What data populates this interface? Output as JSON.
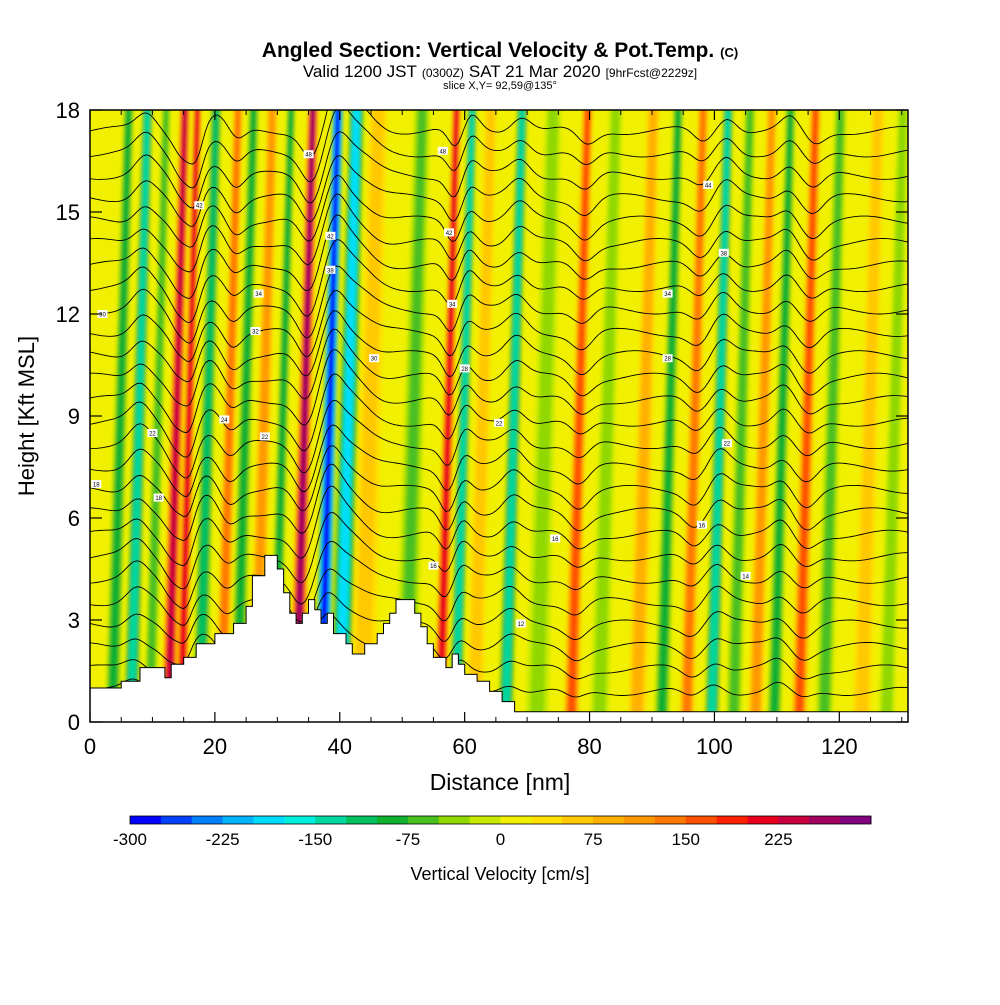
{
  "header": {
    "title_main": "Angled Section: Vertical Velocity & Pot.Temp.",
    "title_unit": "(C)",
    "valid_prefix": "Valid 1200 JST",
    "valid_z": "(0300Z)",
    "valid_date": "SAT 21 Mar 2020",
    "valid_fcst": "[9hrFcst@2229z]",
    "slice": "slice X,Y= 92,59@135°"
  },
  "chart_data": {
    "type": "heatmap",
    "title": "Angled Section: Vertical Velocity & Pot.Temp. (C)",
    "xlabel": "Distance [nm]",
    "ylabel": "Height [Kft MSL]",
    "xlim": [
      0,
      131
    ],
    "ylim": [
      0,
      18
    ],
    "x_ticks": [
      "0",
      "20",
      "40",
      "60",
      "80",
      "100",
      "120"
    ],
    "y_ticks": [
      "0",
      "3",
      "6",
      "9",
      "12",
      "15",
      "18"
    ],
    "colorbar": {
      "label": "Vertical Velocity [cm/s]",
      "min": -300,
      "max": 250,
      "step": 25,
      "tick_labels": [
        "-300",
        "-225",
        "-150",
        "-75",
        "0",
        "75",
        "150",
        "225"
      ],
      "colors": [
        "#0000ff",
        "#0040ff",
        "#0080ff",
        "#00b4ff",
        "#00dcff",
        "#00f0e0",
        "#00d8a0",
        "#00c060",
        "#10b030",
        "#48c020",
        "#90d800",
        "#c8ea00",
        "#f0f000",
        "#ffe000",
        "#ffc800",
        "#ffb000",
        "#ff9800",
        "#ff7800",
        "#ff5000",
        "#ff2000",
        "#e8001c",
        "#c80040",
        "#a00060",
        "#800080"
      ]
    },
    "velocity_columns": [
      {
        "x": 4,
        "w": 1.5,
        "v": -90
      },
      {
        "x": 7,
        "w": 1.6,
        "v": -150
      },
      {
        "x": 10,
        "w": 1.1,
        "v": -60
      },
      {
        "x": 13,
        "w": 1.5,
        "v": 210
      },
      {
        "x": 15,
        "w": 1.0,
        "v": 180
      },
      {
        "x": 18,
        "w": 1.6,
        "v": -120
      },
      {
        "x": 21.5,
        "w": 1.3,
        "v": 110
      },
      {
        "x": 24,
        "w": 1.5,
        "v": -90
      },
      {
        "x": 27,
        "w": 1.6,
        "v": 90
      },
      {
        "x": 30,
        "w": 1.1,
        "v": -80
      },
      {
        "x": 33.5,
        "w": 1.6,
        "v": 240
      },
      {
        "x": 37.5,
        "w": 1.7,
        "v": -300
      },
      {
        "x": 40.5,
        "w": 2.6,
        "v": -200
      },
      {
        "x": 44,
        "w": 3.0,
        "v": 50
      },
      {
        "x": 51,
        "w": 2.6,
        "v": -70
      },
      {
        "x": 56.5,
        "w": 1.2,
        "v": 190
      },
      {
        "x": 59,
        "w": 1.3,
        "v": -130
      },
      {
        "x": 62,
        "w": 1.8,
        "v": 40
      },
      {
        "x": 67,
        "w": 1.6,
        "v": -140
      },
      {
        "x": 72,
        "w": 2.6,
        "v": -50
      },
      {
        "x": 77.5,
        "w": 1.6,
        "v": 140
      },
      {
        "x": 82,
        "w": 2.0,
        "v": -50
      },
      {
        "x": 88,
        "w": 2.0,
        "v": 70
      },
      {
        "x": 92,
        "w": 1.5,
        "v": -90
      },
      {
        "x": 96,
        "w": 1.5,
        "v": 110
      },
      {
        "x": 100,
        "w": 1.5,
        "v": -130
      },
      {
        "x": 103.5,
        "w": 1.6,
        "v": -70
      },
      {
        "x": 107,
        "w": 1.5,
        "v": 80
      },
      {
        "x": 110,
        "w": 1.4,
        "v": -100
      },
      {
        "x": 114,
        "w": 1.6,
        "v": 130
      },
      {
        "x": 118,
        "w": 1.8,
        "v": -60
      },
      {
        "x": 124,
        "w": 2.0,
        "v": 30
      },
      {
        "x": 128,
        "w": 1.6,
        "v": -40
      }
    ],
    "terrain": [
      [
        0,
        1.0
      ],
      [
        5,
        1.0
      ],
      [
        5,
        1.2
      ],
      [
        8,
        1.2
      ],
      [
        8,
        1.6
      ],
      [
        12,
        1.6
      ],
      [
        12,
        1.3
      ],
      [
        13,
        1.3
      ],
      [
        13,
        1.7
      ],
      [
        15,
        1.7
      ],
      [
        15,
        1.9
      ],
      [
        17,
        1.9
      ],
      [
        17,
        2.3
      ],
      [
        20,
        2.3
      ],
      [
        20,
        2.6
      ],
      [
        23,
        2.6
      ],
      [
        23,
        2.9
      ],
      [
        25,
        2.9
      ],
      [
        25,
        3.4
      ],
      [
        26,
        3.4
      ],
      [
        26,
        4.3
      ],
      [
        28,
        4.3
      ],
      [
        28,
        4.9
      ],
      [
        30,
        4.9
      ],
      [
        30,
        4.5
      ],
      [
        31,
        4.5
      ],
      [
        31,
        3.8
      ],
      [
        32,
        3.8
      ],
      [
        32,
        3.2
      ],
      [
        33,
        3.2
      ],
      [
        33,
        2.9
      ],
      [
        34,
        2.9
      ],
      [
        34,
        3.2
      ],
      [
        35,
        3.2
      ],
      [
        35,
        3.6
      ],
      [
        36,
        3.6
      ],
      [
        36,
        3.3
      ],
      [
        37,
        3.3
      ],
      [
        37,
        2.9
      ],
      [
        38,
        2.9
      ],
      [
        38,
        3.2
      ],
      [
        39,
        3.2
      ],
      [
        39,
        2.6
      ],
      [
        41,
        2.6
      ],
      [
        41,
        2.3
      ],
      [
        42,
        2.3
      ],
      [
        42,
        2.0
      ],
      [
        44,
        2.0
      ],
      [
        44,
        2.3
      ],
      [
        46,
        2.3
      ],
      [
        46,
        2.6
      ],
      [
        47,
        2.6
      ],
      [
        47,
        2.9
      ],
      [
        48,
        2.9
      ],
      [
        48,
        3.2
      ],
      [
        49,
        3.2
      ],
      [
        49,
        3.6
      ],
      [
        52,
        3.6
      ],
      [
        52,
        3.2
      ],
      [
        53,
        3.2
      ],
      [
        53,
        2.8
      ],
      [
        54,
        2.8
      ],
      [
        54,
        2.3
      ],
      [
        55,
        2.3
      ],
      [
        55,
        1.9
      ],
      [
        57,
        1.9
      ],
      [
        57,
        1.6
      ],
      [
        58,
        1.6
      ],
      [
        58,
        2.0
      ],
      [
        59,
        2.0
      ],
      [
        59,
        1.7
      ],
      [
        60,
        1.7
      ],
      [
        60,
        1.4
      ],
      [
        62,
        1.4
      ],
      [
        62,
        1.2
      ],
      [
        64,
        1.2
      ],
      [
        64,
        0.9
      ],
      [
        66,
        0.9
      ],
      [
        66,
        0.6
      ],
      [
        68,
        0.6
      ],
      [
        68,
        0.3
      ],
      [
        72,
        0.3
      ],
      [
        72,
        0.3
      ],
      [
        131,
        0.3
      ]
    ],
    "theta_levels": [
      8,
      10,
      12,
      14,
      16,
      18,
      20,
      22,
      24,
      26,
      28,
      30,
      32,
      34,
      36,
      38,
      40,
      42,
      44,
      46,
      48,
      50,
      52,
      54,
      56,
      58
    ],
    "theta_label_points": [
      {
        "x": 1,
        "y": 7.0,
        "label": "18"
      },
      {
        "x": 2,
        "y": 12.0,
        "label": "30"
      },
      {
        "x": 10,
        "y": 8.5,
        "label": "22"
      },
      {
        "x": 11,
        "y": 6.6,
        "label": "18"
      },
      {
        "x": 17.5,
        "y": 15.2,
        "label": "42"
      },
      {
        "x": 21.5,
        "y": 8.9,
        "label": "24"
      },
      {
        "x": 26.5,
        "y": 11.5,
        "label": "32"
      },
      {
        "x": 27,
        "y": 12.6,
        "label": "34"
      },
      {
        "x": 28,
        "y": 8.4,
        "label": "22"
      },
      {
        "x": 35,
        "y": 16.7,
        "label": "48"
      },
      {
        "x": 38.5,
        "y": 14.3,
        "label": "42"
      },
      {
        "x": 38.5,
        "y": 13.3,
        "label": "38"
      },
      {
        "x": 45.5,
        "y": 10.7,
        "label": "30"
      },
      {
        "x": 56.5,
        "y": 16.8,
        "label": "48"
      },
      {
        "x": 57.5,
        "y": 14.4,
        "label": "42"
      },
      {
        "x": 58,
        "y": 12.3,
        "label": "34"
      },
      {
        "x": 60,
        "y": 10.4,
        "label": "28"
      },
      {
        "x": 55,
        "y": 4.6,
        "label": "16"
      },
      {
        "x": 65.5,
        "y": 8.8,
        "label": "22"
      },
      {
        "x": 69,
        "y": 2.9,
        "label": "12"
      },
      {
        "x": 74.5,
        "y": 5.4,
        "label": "16"
      },
      {
        "x": 92.5,
        "y": 12.6,
        "label": "34"
      },
      {
        "x": 92.5,
        "y": 10.7,
        "label": "28"
      },
      {
        "x": 99,
        "y": 15.8,
        "label": "44"
      },
      {
        "x": 101.5,
        "y": 13.8,
        "label": "38"
      },
      {
        "x": 102,
        "y": 8.2,
        "label": "22"
      },
      {
        "x": 98,
        "y": 5.8,
        "label": "16"
      },
      {
        "x": 105,
        "y": 4.3,
        "label": "14"
      }
    ]
  }
}
